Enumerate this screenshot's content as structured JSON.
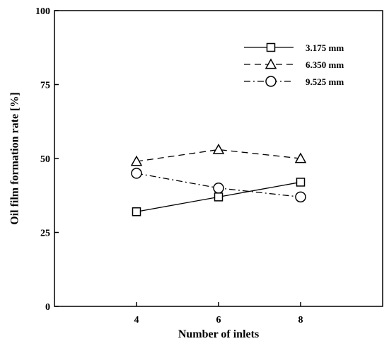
{
  "chart_data": {
    "type": "line",
    "title": "",
    "xlabel": "Number of inlets",
    "ylabel": "Oil film formation rate [%]",
    "x": [
      4,
      6,
      8
    ],
    "xlim": [
      2,
      10
    ],
    "ylim": [
      0,
      100
    ],
    "xticks": [
      "4",
      "6",
      "8"
    ],
    "yticks": [
      "0",
      "25",
      "50",
      "75",
      "100"
    ],
    "legend_position": "top-right",
    "grid": false,
    "series": [
      {
        "name": "3.175 mm",
        "values": [
          32,
          37,
          42
        ],
        "marker": "square",
        "line_style": "solid"
      },
      {
        "name": "6.350 mm",
        "values": [
          49,
          53,
          50
        ],
        "marker": "triangle",
        "line_style": "dashed"
      },
      {
        "name": "9.525 mm",
        "values": [
          45,
          40,
          37
        ],
        "marker": "circle",
        "line_style": "dash-dot"
      }
    ]
  }
}
